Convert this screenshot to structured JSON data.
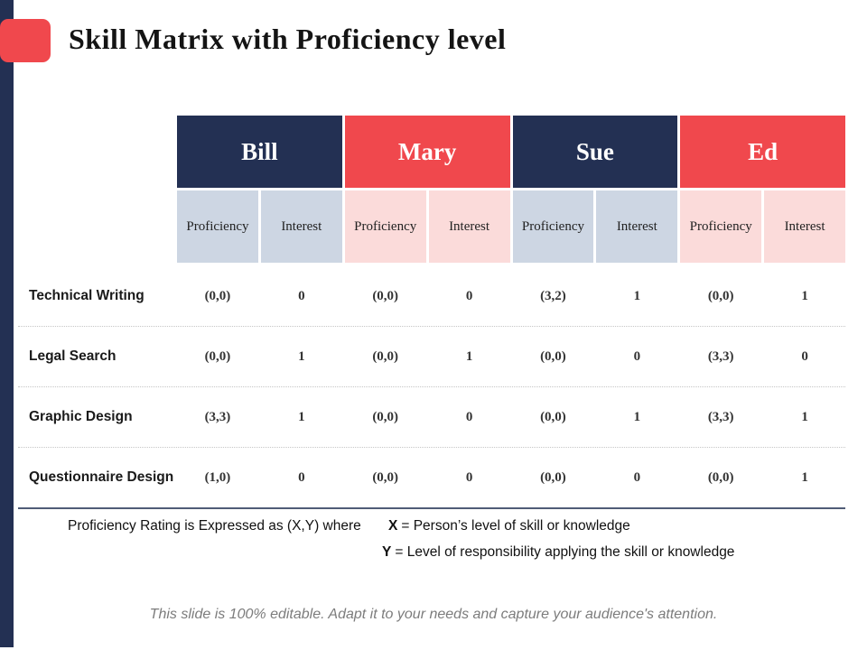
{
  "slide": {
    "title": "Skill Matrix with Proficiency level",
    "editable_note": "This slide is 100% editable. Adapt it to your needs and capture your audience's attention."
  },
  "footnote": {
    "intro": "Proficiency Rating is Expressed as (X,Y) where",
    "x_label": "X",
    "x_text": "= Person’s level of skill or knowledge",
    "y_label": "Y",
    "y_text": "= Level of responsibility applying the skill or knowledge"
  },
  "colors": {
    "navy": "#233053",
    "red": "#f0484d",
    "light_blue": "#cdd6e3",
    "light_pink": "#fbdbda"
  },
  "table": {
    "people": [
      {
        "name": "Bill",
        "theme": "navy"
      },
      {
        "name": "Mary",
        "theme": "red"
      },
      {
        "name": "Sue",
        "theme": "navy"
      },
      {
        "name": "Ed",
        "theme": "red"
      }
    ],
    "subheaders": [
      "Proficiency",
      "Interest"
    ],
    "rows": [
      {
        "skill": "Technical Writing",
        "values": [
          "(0,0)",
          "0",
          "(0,0)",
          "0",
          "(3,2)",
          "1",
          "(0,0)",
          "1"
        ]
      },
      {
        "skill": "Legal Search",
        "values": [
          "(0,0)",
          "1",
          "(0,0)",
          "1",
          "(0,0)",
          "0",
          "(3,3)",
          "0"
        ]
      },
      {
        "skill": "Graphic Design",
        "values": [
          "(3,3)",
          "1",
          "(0,0)",
          "0",
          "(0,0)",
          "1",
          "(3,3)",
          "1"
        ]
      },
      {
        "skill": "Questionnaire Design",
        "values": [
          "(1,0)",
          "0",
          "(0,0)",
          "0",
          "(0,0)",
          "0",
          "(0,0)",
          "1"
        ]
      }
    ]
  }
}
